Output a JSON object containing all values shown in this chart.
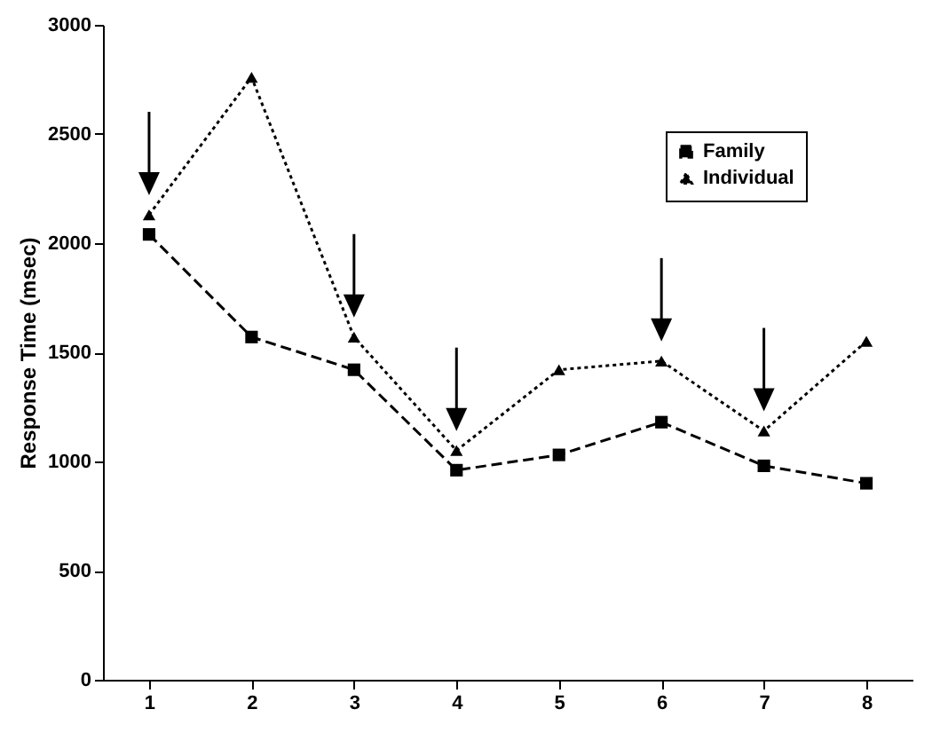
{
  "chart_data": {
    "type": "line",
    "ylabel": "Response Time (msec)",
    "categories": [
      "1",
      "2",
      "3",
      "4",
      "5",
      "6",
      "7",
      "8"
    ],
    "series": [
      {
        "name": "Family",
        "color": "#000000",
        "marker": "square",
        "line_style": "dashed",
        "values": [
          2040,
          1570,
          1420,
          960,
          1030,
          1180,
          980,
          900
        ]
      },
      {
        "name": "Individual",
        "color": "#000000",
        "marker": "triangle",
        "line_style": "dotted",
        "values": [
          2130,
          2760,
          1570,
          1050,
          1420,
          1460,
          1140,
          1550
        ]
      }
    ],
    "ylim": [
      0,
      3000
    ],
    "yticks": [
      0,
      500,
      1000,
      1500,
      2000,
      2500,
      3000
    ],
    "grid": false,
    "legend": "top right"
  }
}
